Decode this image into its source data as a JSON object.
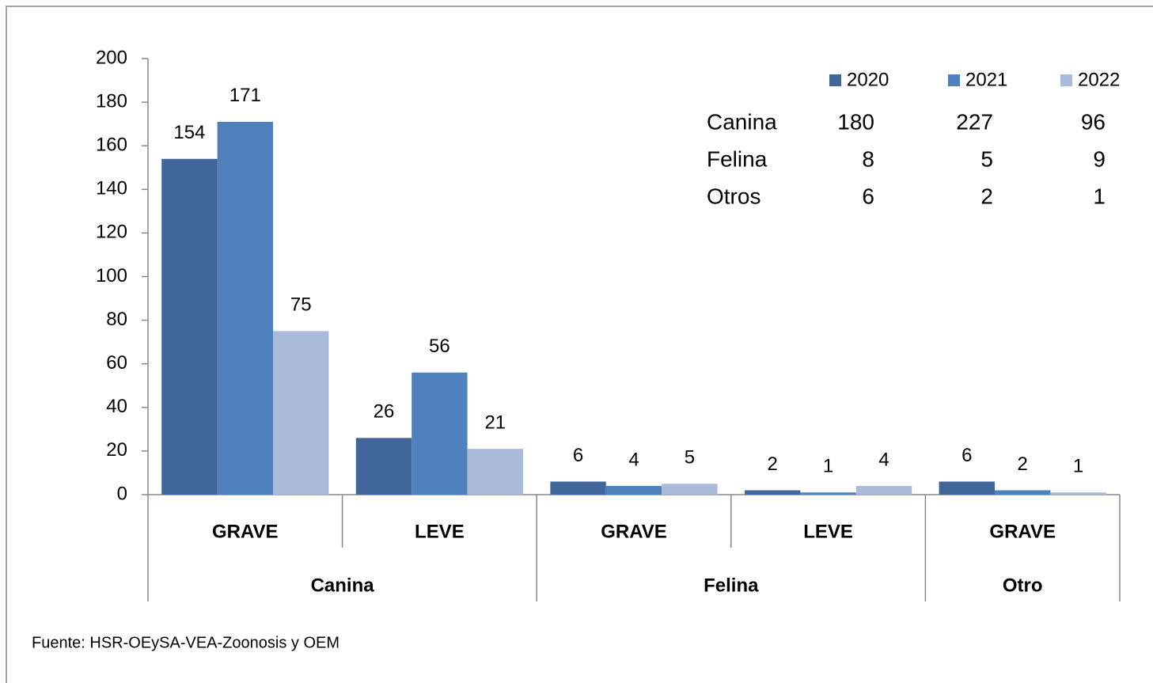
{
  "chart_data": {
    "type": "bar",
    "category_groups": [
      {
        "name": "Canina",
        "categories": [
          "GRAVE",
          "LEVE"
        ]
      },
      {
        "name": "Felina",
        "categories": [
          "GRAVE",
          "LEVE"
        ]
      },
      {
        "name": "Otro",
        "categories": [
          "GRAVE"
        ]
      }
    ],
    "series": [
      {
        "name": "2020",
        "color": "#41679a",
        "values": [
          154,
          26,
          6,
          2,
          6
        ]
      },
      {
        "name": "2021",
        "color": "#4f81bd",
        "values": [
          171,
          56,
          4,
          1,
          2
        ]
      },
      {
        "name": "2022",
        "color": "#aabbd9",
        "values": [
          75,
          21,
          5,
          4,
          1
        ]
      }
    ],
    "ylim": [
      0,
      200
    ],
    "yticks": [
      0,
      20,
      40,
      60,
      80,
      100,
      120,
      140,
      160,
      180,
      200
    ],
    "grid": false,
    "legend": "top-right",
    "table": {
      "rows": [
        {
          "label": "Canina",
          "values": [
            180,
            227,
            96
          ]
        },
        {
          "label": "Felina",
          "values": [
            8,
            5,
            9
          ]
        },
        {
          "label": "Otros",
          "values": [
            6,
            2,
            1
          ]
        }
      ]
    },
    "source": "Fuente: HSR-OEySA-VEA-Zoonosis y OEM"
  }
}
